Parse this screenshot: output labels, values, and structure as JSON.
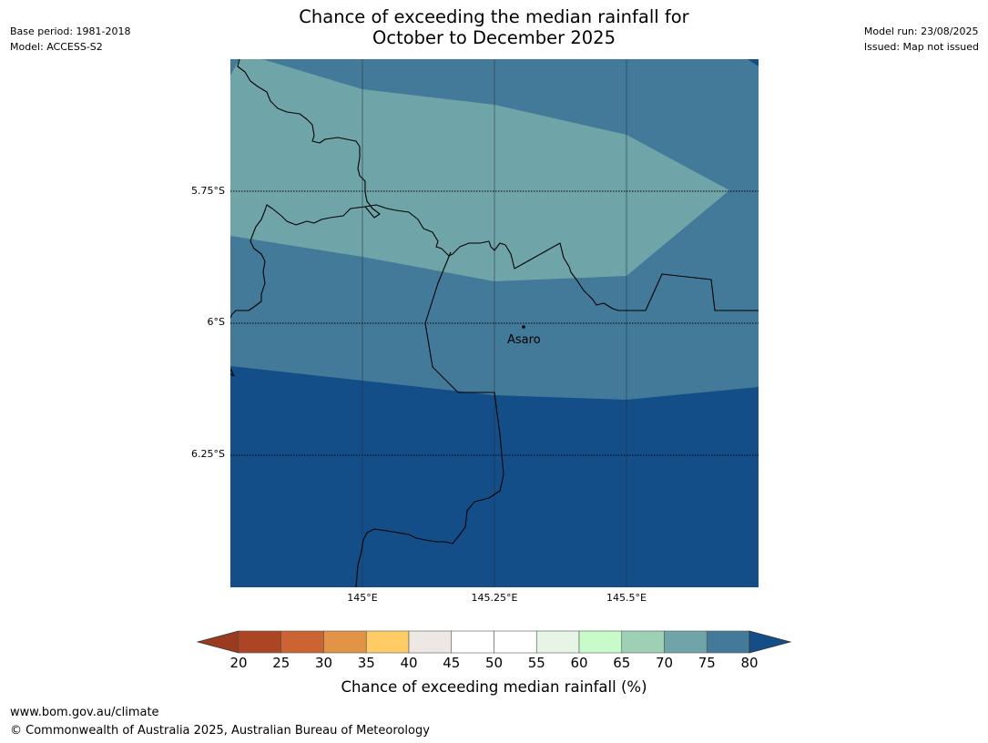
{
  "header": {
    "title_line1": "Chance of exceeding the median rainfall for",
    "title_line2": "October to December 2025",
    "base_period": "Base period: 1981-2018",
    "model": "Model: ACCESS-S2",
    "model_run": "Model run: 23/08/2025",
    "issued": "Issued: Map not issued"
  },
  "map": {
    "lat_labels": [
      "5.75°S",
      "6°S",
      "6.25°S"
    ],
    "lon_labels": [
      "145°E",
      "145.25°E",
      "145.5°E"
    ],
    "place": {
      "name": "Asaro"
    },
    "zones": [
      {
        "range": "70-75",
        "color": "#6fa5a8"
      },
      {
        "range": "75-80",
        "color": "#437a9a"
      },
      {
        "range": ">80",
        "color": "#144e88"
      }
    ]
  },
  "colorbar": {
    "ticks": [
      "20",
      "25",
      "30",
      "35",
      "40",
      "45",
      "50",
      "55",
      "60",
      "65",
      "70",
      "75",
      "80"
    ],
    "colors": [
      "#ac4523",
      "#cb6432",
      "#e39346",
      "#fecb65",
      "#ede8e4",
      "#ffffff",
      "#ffffff",
      "#e7f5e6",
      "#c9fbca",
      "#9ed0b5",
      "#6fa5a8",
      "#437a9a"
    ],
    "under_color": "#9c3a20",
    "over_color": "#144e88",
    "label": "Chance of exceeding median rainfall (%)"
  },
  "footer": {
    "url": "www.bom.gov.au/climate",
    "copyright": "© Commonwealth of Australia 2025, Australian Bureau of Meteorology"
  }
}
